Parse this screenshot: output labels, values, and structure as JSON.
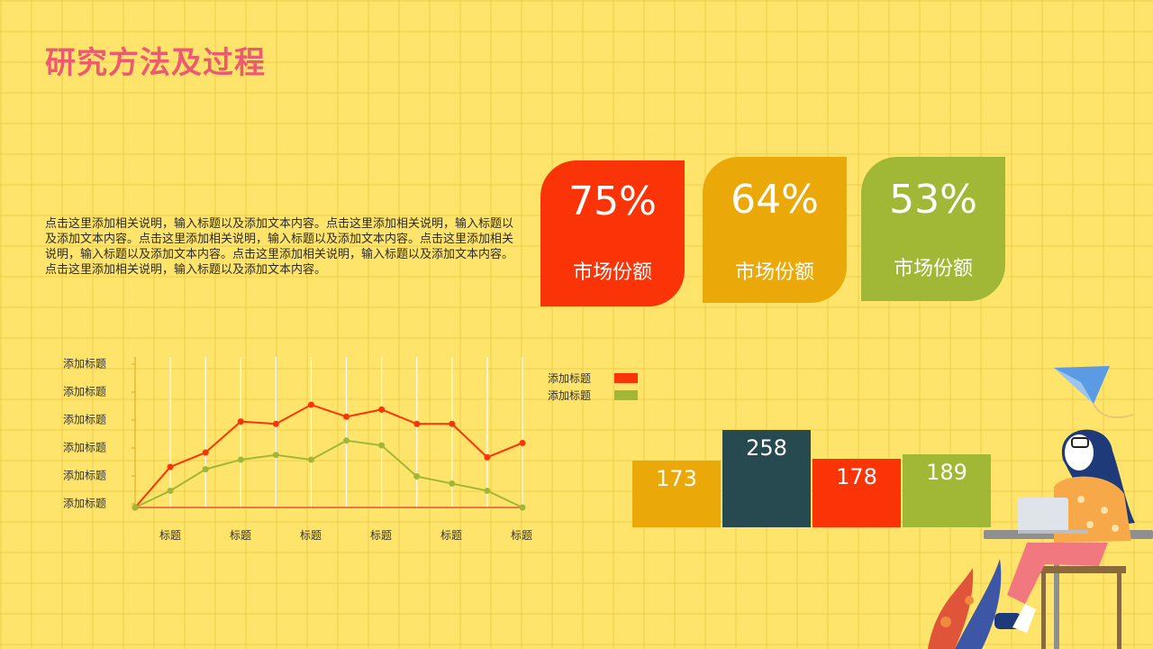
{
  "page": {
    "title": "研究方法及过程",
    "description": "点击这里添加相关说明，输入标题以及添加文本内容。点击这里添加相关说明，输入标题以及添加文本内容。点击这里添加相关说明，输入标题以及添加文本内容。点击这里添加相关说明，输入标题以及添加文本内容。点击这里添加相关说明，输入标题以及添加文本内容。点击这里添加相关说明，输入标题以及添加文本内容。"
  },
  "cards": [
    {
      "percent": "75%",
      "label": "市场份额",
      "color": "#fb3407"
    },
    {
      "percent": "64%",
      "label": "市场份额",
      "color": "#eaa909"
    },
    {
      "percent": "53%",
      "label": "市场份额",
      "color": "#a1b836"
    }
  ],
  "colors": {
    "red": "#fb3407",
    "green": "#a1b836",
    "dark": "#264a4f",
    "gold": "#eaa909",
    "accent": "#ec5a72"
  },
  "chart_data": [
    {
      "type": "line",
      "y_tick_labels": [
        "添加标题",
        "添加标题",
        "添加标题",
        "添加标题",
        "添加标题",
        "添加标题"
      ],
      "x_tick_labels": [
        "标题",
        "标题",
        "标题",
        "标题",
        "标题",
        "标题"
      ],
      "ylim": [
        0,
        6
      ],
      "grid": "vertical",
      "series": [
        {
          "color": "#fb3407",
          "values": [
            0,
            1.7,
            2.3,
            3.6,
            3.5,
            4.3,
            3.8,
            4.1,
            3.5,
            3.5,
            2.1,
            2.7
          ]
        },
        {
          "color": "#a1b836",
          "values": [
            0,
            0.7,
            1.6,
            2.0,
            2.2,
            2.0,
            2.8,
            2.6,
            1.3,
            1.0,
            0.7,
            0
          ]
        }
      ]
    },
    {
      "type": "bar",
      "legend": [
        {
          "label": "添加标题",
          "color": "#fb3407"
        },
        {
          "label": "添加标题",
          "color": "#a1b836"
        }
      ],
      "values": [
        173,
        258,
        178,
        189
      ],
      "value_labels": [
        "173",
        "258",
        "178",
        "189"
      ],
      "colors": [
        "#eaa909",
        "#264a4f",
        "#fb3407",
        "#a1b836"
      ]
    }
  ]
}
